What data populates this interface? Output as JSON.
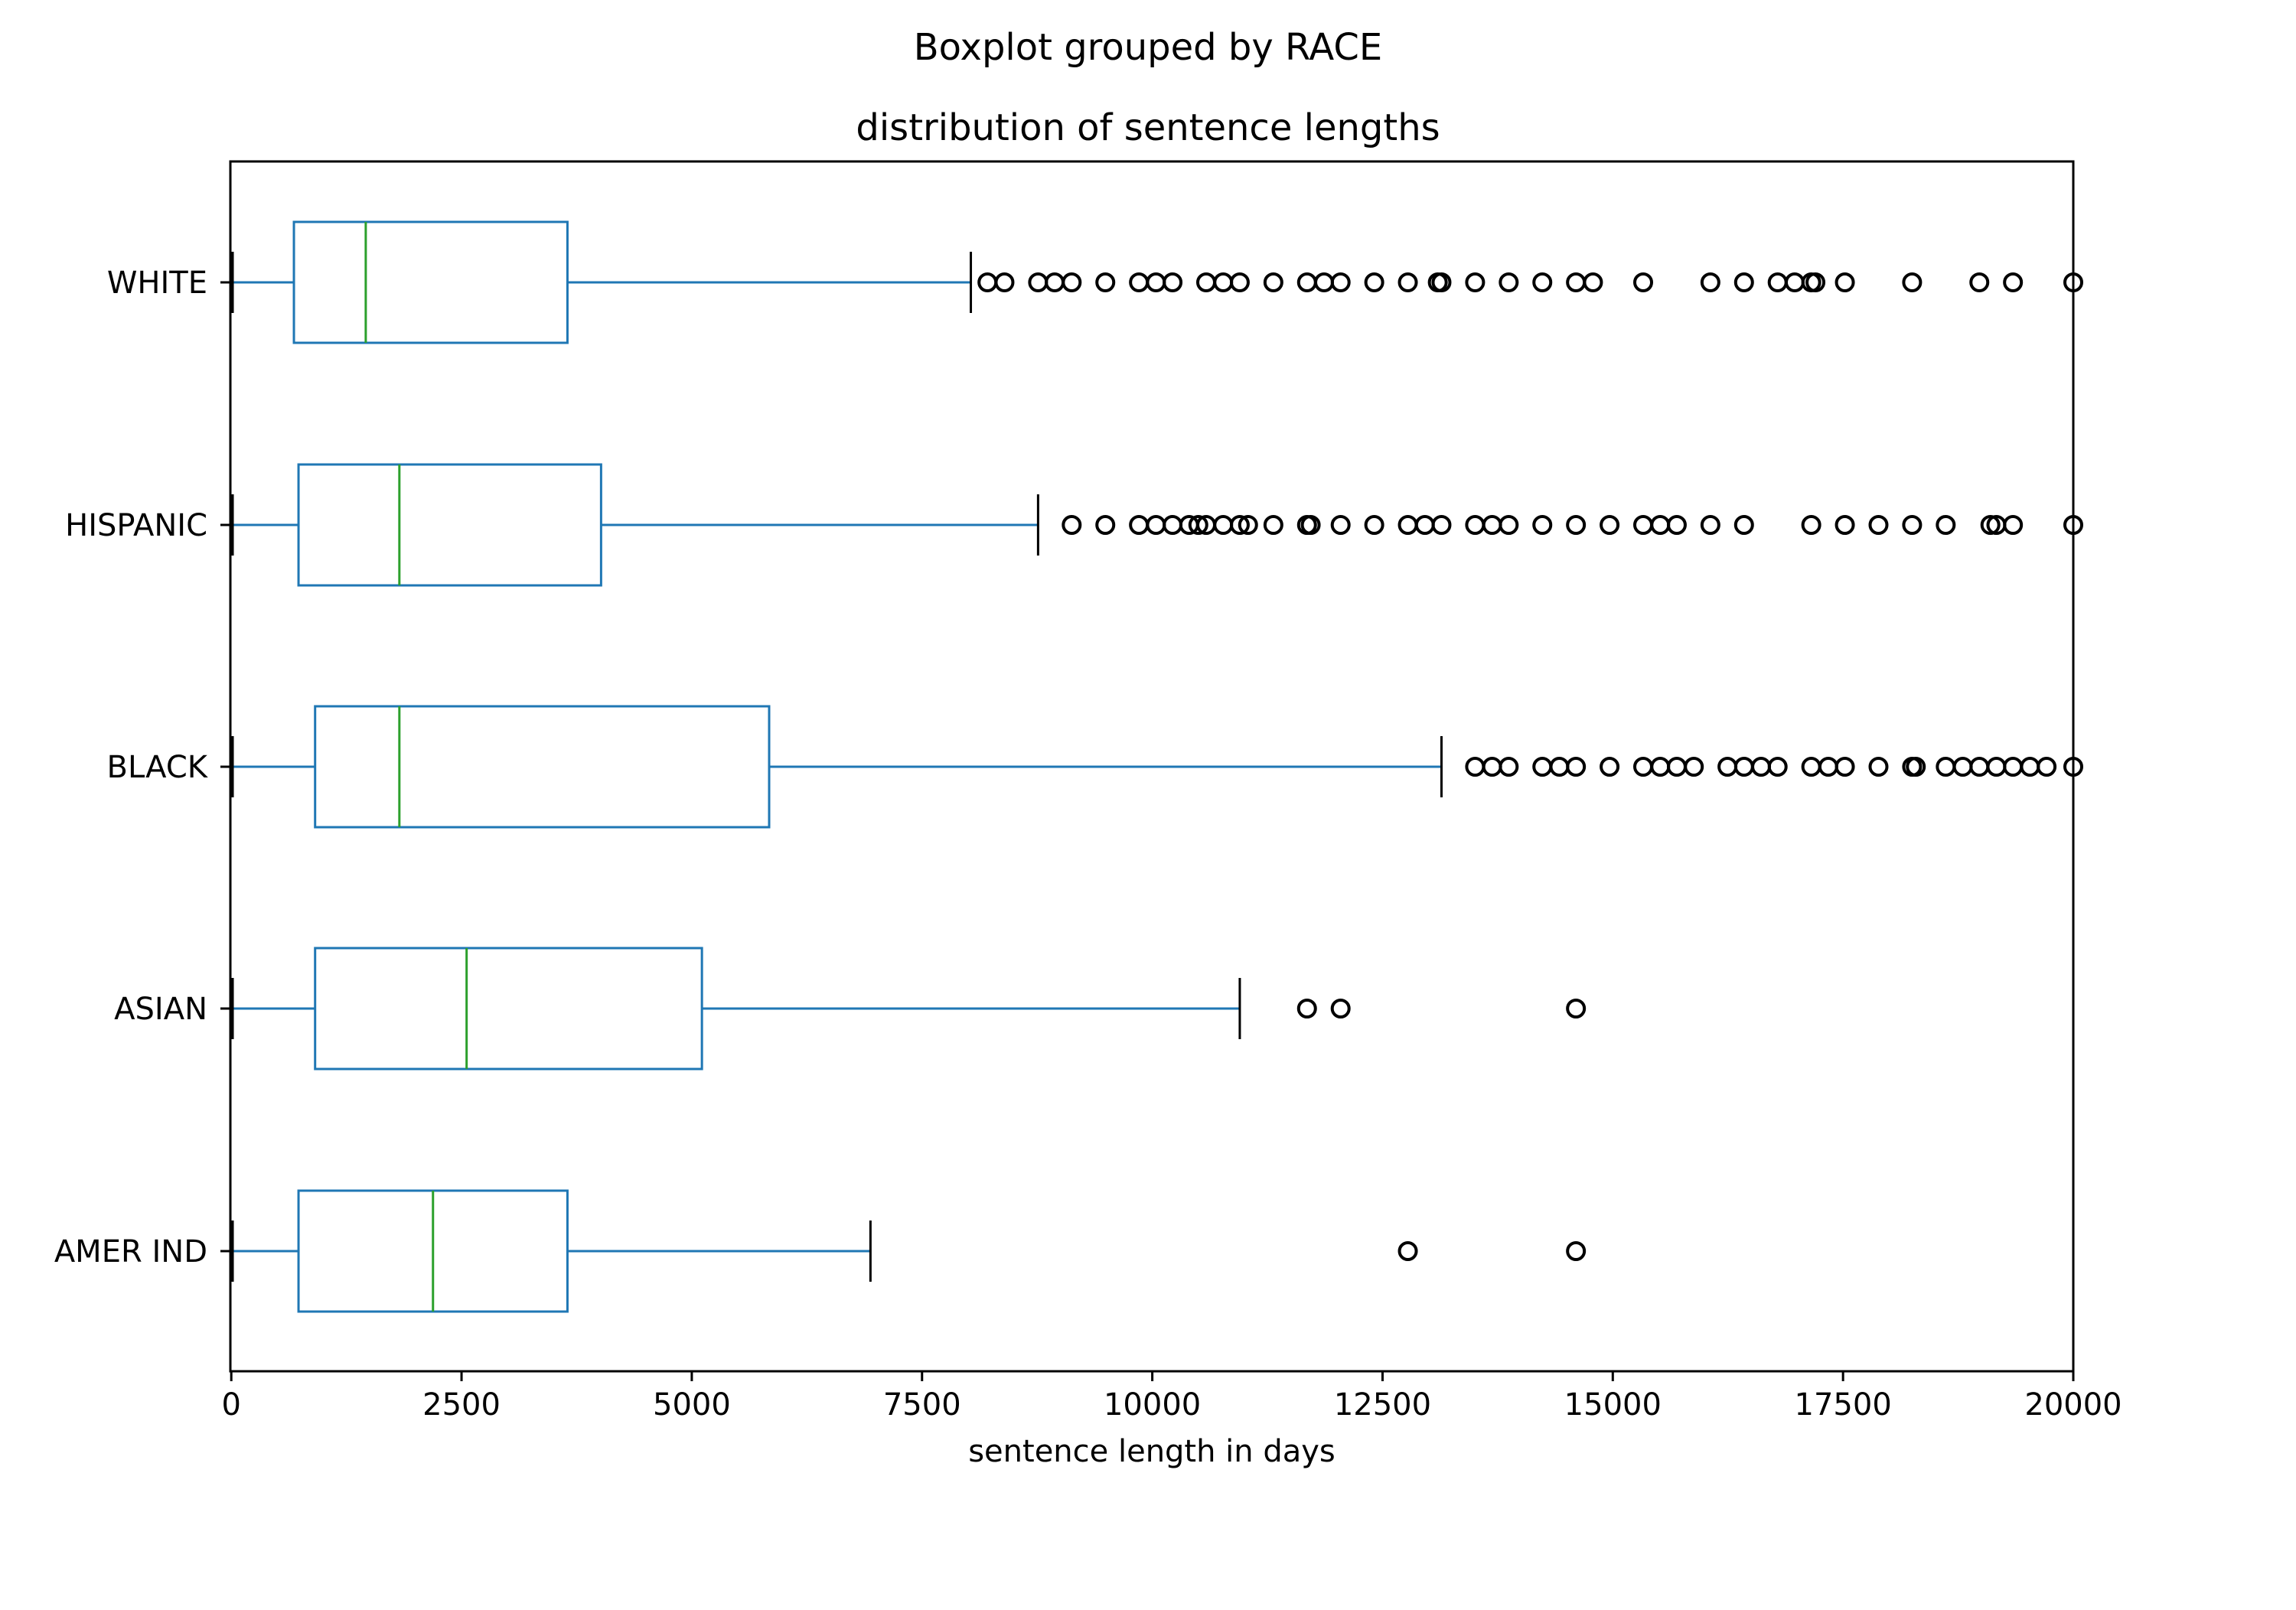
{
  "chart_data": {
    "type": "boxplot",
    "orientation": "horizontal",
    "suptitle": "Boxplot grouped by RACE",
    "title": "distribution of sentence lengths",
    "xlabel": "sentence length in days",
    "ylabel": "",
    "xlim": [
      -10,
      20000
    ],
    "xticks": [
      0,
      2500,
      5000,
      7500,
      10000,
      12500,
      15000,
      17500,
      20000
    ],
    "xtick_labels": [
      "0",
      "2500",
      "5000",
      "7500",
      "10000",
      "12500",
      "15000",
      "17500",
      "20000"
    ],
    "grid": false,
    "colors": {
      "box": "#1f77b4",
      "median": "#2ca02c",
      "whisker": "#1f77b4",
      "cap": "#000000",
      "flier": "#000000",
      "axes": "#000000"
    },
    "categories": [
      "AMER IND",
      "ASIAN",
      "BLACK",
      "HISPANIC",
      "WHITE"
    ],
    "groups": [
      {
        "name": "AMER IND",
        "whislo": 15,
        "q1": 730,
        "median": 2190,
        "q3": 3650,
        "whishi": 6940,
        "fliers": [
          12775,
          14600
        ]
      },
      {
        "name": "ASIAN",
        "whislo": 15,
        "q1": 910,
        "median": 2555,
        "q3": 5110,
        "whishi": 10950,
        "fliers": [
          11680,
          12045,
          14600
        ]
      },
      {
        "name": "BLACK",
        "whislo": 15,
        "q1": 910,
        "median": 1825,
        "q3": 5840,
        "whishi": 13140,
        "fliers": [
          13505,
          13690,
          13870,
          14235,
          14420,
          14600,
          14965,
          15330,
          15515,
          15695,
          15880,
          16245,
          16425,
          16610,
          16790,
          17155,
          17340,
          17520,
          17885,
          18250,
          18290,
          18615,
          18800,
          18980,
          19165,
          19345,
          19530,
          19710,
          20000
        ]
      },
      {
        "name": "HISPANIC",
        "whislo": 15,
        "q1": 730,
        "median": 1825,
        "q3": 4015,
        "whishi": 8760,
        "fliers": [
          9125,
          9490,
          9855,
          10040,
          10220,
          10400,
          10500,
          10585,
          10770,
          10950,
          11040,
          11315,
          11680,
          11720,
          12045,
          12410,
          12775,
          12960,
          13140,
          13505,
          13690,
          13870,
          14235,
          14600,
          14965,
          15330,
          15515,
          15695,
          16060,
          16425,
          17155,
          17520,
          17885,
          18250,
          18615,
          19100,
          19165,
          19345,
          20000
        ]
      },
      {
        "name": "WHITE",
        "whislo": 15,
        "q1": 680,
        "median": 1460,
        "q3": 3650,
        "whishi": 8030,
        "fliers": [
          8210,
          8395,
          8760,
          8940,
          9125,
          9490,
          9855,
          10040,
          10220,
          10585,
          10770,
          10950,
          11315,
          11680,
          11865,
          12045,
          12410,
          12775,
          13100,
          13140,
          13505,
          13870,
          14235,
          14600,
          14785,
          15330,
          16060,
          16425,
          16790,
          16975,
          17155,
          17200,
          17520,
          18250,
          18980,
          19345,
          20000
        ]
      }
    ]
  }
}
